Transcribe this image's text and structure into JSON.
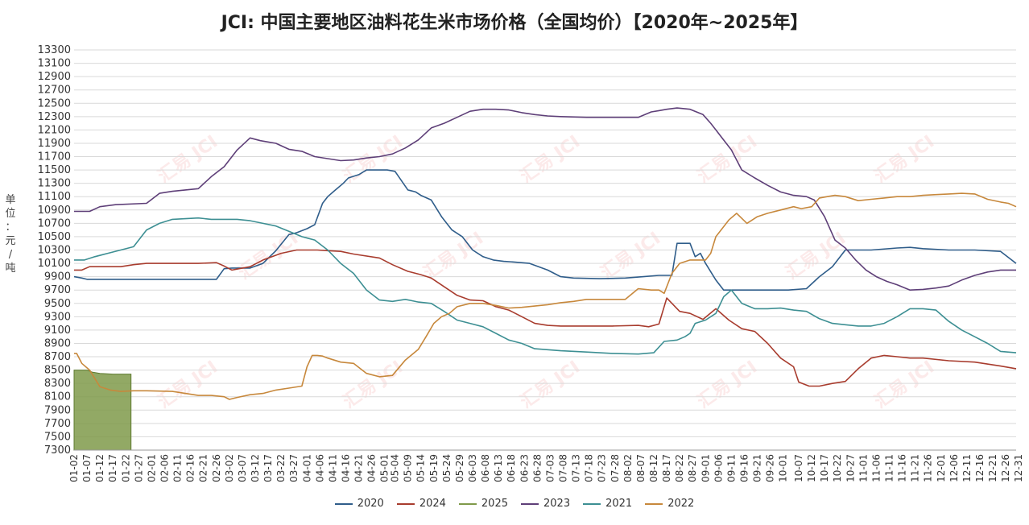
{
  "title": "JCI: 中国主要地区油料花生米市场价格（全国均价）【2020年~2025年】",
  "watermark": "汇易 JCI",
  "chart_data": {
    "type": "line",
    "ylabel": "单\n位\n：\n元\n/\n吨",
    "ylim": [
      7300,
      13300
    ],
    "yticks": [
      7300,
      7500,
      7700,
      7900,
      8100,
      8300,
      8500,
      8700,
      8900,
      9100,
      9300,
      9500,
      9700,
      9900,
      10100,
      10300,
      10500,
      10700,
      10900,
      11100,
      11300,
      11500,
      11700,
      11900,
      12100,
      12300,
      12500,
      12700,
      12900,
      13100,
      13300
    ],
    "xlim": [
      2,
      366
    ],
    "xticks": [
      {
        "d": 2,
        "label": "01-02"
      },
      {
        "d": 7,
        "label": "01-07"
      },
      {
        "d": 12,
        "label": "01-12"
      },
      {
        "d": 17,
        "label": "01-17"
      },
      {
        "d": 22,
        "label": "01-22"
      },
      {
        "d": 27,
        "label": "01-27"
      },
      {
        "d": 32,
        "label": "02-01"
      },
      {
        "d": 37,
        "label": "02-06"
      },
      {
        "d": 42,
        "label": "02-11"
      },
      {
        "d": 47,
        "label": "02-16"
      },
      {
        "d": 52,
        "label": "02-21"
      },
      {
        "d": 57,
        "label": "02-26"
      },
      {
        "d": 62,
        "label": "03-02"
      },
      {
        "d": 67,
        "label": "03-07"
      },
      {
        "d": 72,
        "label": "03-12"
      },
      {
        "d": 77,
        "label": "03-17"
      },
      {
        "d": 82,
        "label": "03-22"
      },
      {
        "d": 87,
        "label": "03-27"
      },
      {
        "d": 92,
        "label": "04-01"
      },
      {
        "d": 97,
        "label": "04-06"
      },
      {
        "d": 102,
        "label": "04-11"
      },
      {
        "d": 107,
        "label": "04-16"
      },
      {
        "d": 112,
        "label": "04-21"
      },
      {
        "d": 117,
        "label": "04-26"
      },
      {
        "d": 122,
        "label": "05-01"
      },
      {
        "d": 126,
        "label": "05-04"
      },
      {
        "d": 131,
        "label": "05-09"
      },
      {
        "d": 136,
        "label": "05-14"
      },
      {
        "d": 141,
        "label": "05-19"
      },
      {
        "d": 146,
        "label": "05-24"
      },
      {
        "d": 151,
        "label": "05-29"
      },
      {
        "d": 156,
        "label": "06-03"
      },
      {
        "d": 161,
        "label": "06-08"
      },
      {
        "d": 166,
        "label": "06-13"
      },
      {
        "d": 171,
        "label": "06-18"
      },
      {
        "d": 176,
        "label": "06-23"
      },
      {
        "d": 181,
        "label": "06-28"
      },
      {
        "d": 186,
        "label": "07-03"
      },
      {
        "d": 191,
        "label": "07-08"
      },
      {
        "d": 196,
        "label": "07-13"
      },
      {
        "d": 201,
        "label": "07-18"
      },
      {
        "d": 206,
        "label": "07-23"
      },
      {
        "d": 211,
        "label": "07-28"
      },
      {
        "d": 216,
        "label": "08-02"
      },
      {
        "d": 221,
        "label": "08-07"
      },
      {
        "d": 226,
        "label": "08-12"
      },
      {
        "d": 231,
        "label": "08-17"
      },
      {
        "d": 236,
        "label": "08-22"
      },
      {
        "d": 241,
        "label": "08-27"
      },
      {
        "d": 246,
        "label": "09-01"
      },
      {
        "d": 251,
        "label": "09-06"
      },
      {
        "d": 256,
        "label": "09-11"
      },
      {
        "d": 261,
        "label": "09-16"
      },
      {
        "d": 266,
        "label": "09-21"
      },
      {
        "d": 271,
        "label": "09-26"
      },
      {
        "d": 276,
        "label": "10-01"
      },
      {
        "d": 282,
        "label": "10-07"
      },
      {
        "d": 287,
        "label": "10-12"
      },
      {
        "d": 292,
        "label": "10-17"
      },
      {
        "d": 297,
        "label": "10-22"
      },
      {
        "d": 302,
        "label": "10-27"
      },
      {
        "d": 307,
        "label": "11-01"
      },
      {
        "d": 312,
        "label": "11-06"
      },
      {
        "d": 317,
        "label": "11-11"
      },
      {
        "d": 322,
        "label": "11-16"
      },
      {
        "d": 327,
        "label": "11-21"
      },
      {
        "d": 332,
        "label": "11-26"
      },
      {
        "d": 337,
        "label": "12-01"
      },
      {
        "d": 342,
        "label": "12-06"
      },
      {
        "d": 347,
        "label": "12-11"
      },
      {
        "d": 352,
        "label": "12-16"
      },
      {
        "d": 357,
        "label": "12-21"
      },
      {
        "d": 362,
        "label": "12-26"
      },
      {
        "d": 367,
        "label": "12-31"
      }
    ],
    "grid": true,
    "legend_position": "bottom",
    "area": {
      "name": "2025",
      "color": "#7f9a4a",
      "x": [
        2,
        7,
        9,
        12,
        17,
        24
      ],
      "y": [
        8500,
        8500,
        8470,
        8450,
        8440,
        8440
      ]
    },
    "series": [
      {
        "name": "2020",
        "color": "#2f5d8a",
        "x": [
          2,
          5,
          7,
          12,
          20,
          40,
          57,
          60,
          63,
          70,
          75,
          80,
          85,
          88,
          92,
          95,
          98,
          100,
          103,
          106,
          108,
          112,
          115,
          120,
          123,
          126,
          131,
          134,
          136,
          140,
          144,
          148,
          152,
          156,
          160,
          164,
          168,
          172,
          178,
          185,
          190,
          195,
          205,
          215,
          222,
          228,
          230,
          233,
          235,
          238,
          240,
          242,
          244,
          246,
          250,
          253,
          256,
          260,
          270,
          278,
          285,
          290,
          295,
          300,
          305,
          310,
          320,
          325,
          330,
          340,
          350,
          360,
          366
        ],
        "y": [
          9900,
          9880,
          9860,
          9860,
          9860,
          9860,
          9860,
          10020,
          10030,
          10030,
          10100,
          10290,
          10530,
          10560,
          10620,
          10680,
          11000,
          11100,
          11200,
          11300,
          11380,
          11430,
          11500,
          11500,
          11500,
          11480,
          11200,
          11170,
          11120,
          11050,
          10800,
          10600,
          10500,
          10300,
          10200,
          10150,
          10130,
          10120,
          10100,
          10000,
          9900,
          9880,
          9870,
          9880,
          9900,
          9920,
          9920,
          9920,
          10400,
          10400,
          10400,
          10200,
          10250,
          10100,
          9850,
          9700,
          9700,
          9700,
          9700,
          9700,
          9720,
          9900,
          10050,
          10300,
          10300,
          10300,
          10330,
          10340,
          10320,
          10300,
          10300,
          10280,
          10100
        ]
      },
      {
        "name": "2024",
        "color": "#a83c2e",
        "x": [
          2,
          5,
          8,
          12,
          20,
          25,
          30,
          40,
          50,
          57,
          60,
          63,
          70,
          75,
          82,
          88,
          92,
          96,
          100,
          105,
          110,
          120,
          125,
          131,
          136,
          140,
          145,
          150,
          155,
          160,
          165,
          170,
          175,
          180,
          185,
          190,
          200,
          210,
          220,
          224,
          228,
          231,
          236,
          240,
          245,
          250,
          255,
          260,
          265,
          270,
          275,
          280,
          282,
          286,
          290,
          295,
          300,
          305,
          310,
          315,
          320,
          325,
          330,
          340,
          350,
          360,
          366
        ],
        "y": [
          10000,
          10000,
          10050,
          10050,
          10050,
          10080,
          10100,
          10100,
          10100,
          10110,
          10060,
          10000,
          10050,
          10150,
          10250,
          10300,
          10300,
          10300,
          10290,
          10280,
          10240,
          10180,
          10080,
          9980,
          9930,
          9880,
          9750,
          9620,
          9550,
          9540,
          9450,
          9400,
          9300,
          9200,
          9170,
          9160,
          9160,
          9160,
          9170,
          9150,
          9190,
          9580,
          9380,
          9350,
          9260,
          9420,
          9250,
          9120,
          9080,
          8900,
          8680,
          8550,
          8320,
          8260,
          8260,
          8300,
          8330,
          8520,
          8680,
          8720,
          8700,
          8680,
          8680,
          8640,
          8620,
          8560,
          8520
        ]
      },
      {
        "name": "2023",
        "color": "#5e3f78",
        "x": [
          2,
          8,
          12,
          18,
          30,
          35,
          40,
          50,
          55,
          60,
          65,
          70,
          74,
          80,
          85,
          90,
          95,
          100,
          105,
          110,
          115,
          120,
          125,
          130,
          135,
          140,
          145,
          150,
          155,
          160,
          165,
          170,
          175,
          180,
          185,
          190,
          200,
          210,
          220,
          225,
          228,
          231,
          235,
          240,
          245,
          248,
          252,
          256,
          260,
          265,
          270,
          275,
          280,
          285,
          288,
          292,
          296,
          300,
          304,
          308,
          312,
          316,
          320,
          325,
          330,
          335,
          340,
          345,
          350,
          355,
          360,
          366
        ],
        "y": [
          10880,
          10880,
          10950,
          10980,
          11000,
          11150,
          11180,
          11220,
          11400,
          11550,
          11800,
          11980,
          11940,
          11900,
          11810,
          11780,
          11700,
          11670,
          11640,
          11650,
          11680,
          11700,
          11740,
          11830,
          11950,
          12130,
          12200,
          12290,
          12380,
          12410,
          12410,
          12400,
          12360,
          12330,
          12310,
          12300,
          12290,
          12290,
          12290,
          12370,
          12390,
          12410,
          12430,
          12410,
          12330,
          12200,
          12000,
          11800,
          11500,
          11380,
          11270,
          11170,
          11120,
          11100,
          11050,
          10800,
          10450,
          10330,
          10150,
          10000,
          9900,
          9830,
          9780,
          9700,
          9710,
          9730,
          9760,
          9850,
          9920,
          9970,
          10000,
          10000
        ]
      },
      {
        "name": "2021",
        "color": "#3d8f93",
        "x": [
          2,
          6,
          10,
          15,
          20,
          25,
          30,
          35,
          40,
          50,
          55,
          60,
          65,
          70,
          75,
          80,
          85,
          90,
          95,
          100,
          105,
          110,
          115,
          120,
          125,
          130,
          135,
          140,
          145,
          150,
          155,
          160,
          165,
          170,
          175,
          180,
          190,
          200,
          210,
          220,
          226,
          230,
          235,
          238,
          240,
          242,
          246,
          250,
          253,
          256,
          260,
          265,
          270,
          275,
          280,
          285,
          290,
          295,
          300,
          305,
          310,
          315,
          320,
          325,
          330,
          335,
          340,
          345,
          350,
          355,
          360,
          366
        ],
        "y": [
          10150,
          10150,
          10200,
          10250,
          10300,
          10350,
          10600,
          10700,
          10760,
          10780,
          10760,
          10760,
          10760,
          10740,
          10700,
          10660,
          10580,
          10500,
          10450,
          10300,
          10100,
          9950,
          9700,
          9550,
          9530,
          9560,
          9520,
          9500,
          9380,
          9250,
          9200,
          9150,
          9050,
          8950,
          8900,
          8820,
          8790,
          8770,
          8750,
          8740,
          8760,
          8930,
          8950,
          9000,
          9050,
          9200,
          9250,
          9350,
          9600,
          9700,
          9500,
          9420,
          9420,
          9430,
          9400,
          9380,
          9270,
          9200,
          9180,
          9160,
          9160,
          9200,
          9300,
          9420,
          9420,
          9400,
          9230,
          9100,
          9000,
          8900,
          8780,
          8760
        ]
      },
      {
        "name": "2022",
        "color": "#c7883c",
        "x": [
          2,
          3,
          5,
          8,
          12,
          16,
          20,
          25,
          30,
          40,
          50,
          55,
          60,
          62,
          65,
          70,
          75,
          80,
          85,
          90,
          92,
          94,
          96,
          98,
          100,
          105,
          110,
          115,
          120,
          125,
          130,
          135,
          138,
          141,
          144,
          147,
          150,
          155,
          160,
          165,
          170,
          175,
          180,
          185,
          190,
          195,
          200,
          210,
          215,
          220,
          225,
          228,
          230,
          233,
          236,
          240,
          243,
          246,
          248,
          250,
          255,
          258,
          262,
          266,
          270,
          275,
          280,
          283,
          287,
          290,
          293,
          296,
          300,
          305,
          310,
          315,
          320,
          325,
          330,
          335,
          340,
          345,
          350,
          355,
          360,
          363,
          366
        ],
        "y": [
          8750,
          8750,
          8600,
          8500,
          8250,
          8200,
          8180,
          8190,
          8190,
          8180,
          8120,
          8120,
          8100,
          8060,
          8090,
          8130,
          8150,
          8200,
          8230,
          8260,
          8550,
          8720,
          8720,
          8710,
          8680,
          8620,
          8600,
          8450,
          8400,
          8420,
          8650,
          8810,
          9000,
          9200,
          9300,
          9350,
          9450,
          9500,
          9500,
          9470,
          9430,
          9440,
          9460,
          9480,
          9510,
          9530,
          9560,
          9560,
          9560,
          9720,
          9700,
          9700,
          9650,
          9950,
          10100,
          10150,
          10150,
          10150,
          10250,
          10500,
          10750,
          10850,
          10700,
          10800,
          10850,
          10900,
          10950,
          10920,
          10950,
          11080,
          11100,
          11120,
          11100,
          11040,
          11060,
          11080,
          11100,
          11100,
          11120,
          11130,
          11140,
          11150,
          11140,
          11060,
          11020,
          11000,
          10950
        ]
      }
    ]
  }
}
